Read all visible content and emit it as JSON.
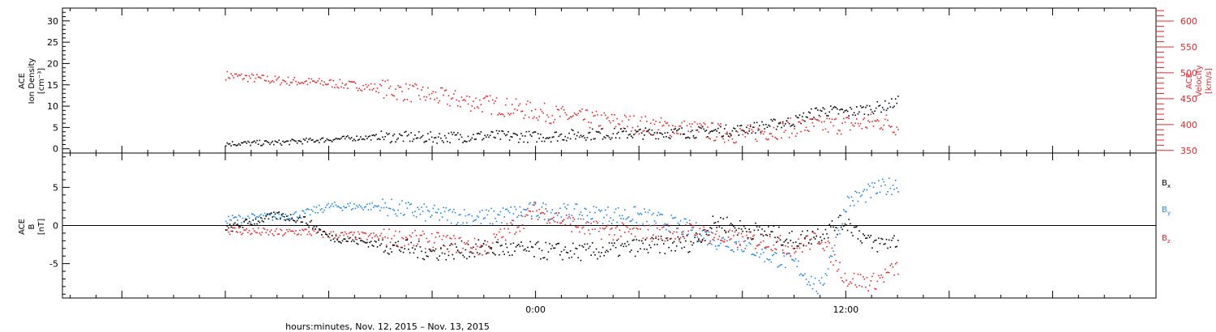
{
  "chart_data": [
    {
      "type": "scatter",
      "panel": "top",
      "ylabel_left": [
        "ACE",
        "Ion Density",
        "[cm⁻³]"
      ],
      "ylabel_right": [
        "ACE",
        "Velocity",
        "[km/s]"
      ],
      "ylim_left": [
        -1,
        33
      ],
      "yticks_left": [
        0,
        5,
        10,
        15,
        20,
        25,
        30
      ],
      "ylim_right": [
        345,
        625
      ],
      "yticks_right": [
        350,
        400,
        450,
        500,
        550,
        600
      ],
      "colors": {
        "density": "#000000",
        "velocity": "#e8262b"
      },
      "series": [
        {
          "axis": "left",
          "x": [
            -12,
            -10,
            -8,
            -6,
            -4,
            -2,
            0,
            2,
            4,
            6,
            8,
            10,
            11,
            12,
            13.5,
            14
          ],
          "y": [
            1.2,
            1.4,
            2.2,
            2.8,
            2.6,
            3.0,
            2.8,
            3.4,
            3.6,
            3.8,
            4.5,
            6.5,
            9.0,
            8.5,
            10.0,
            11.0
          ]
        },
        {
          "axis": "right",
          "x": [
            -12,
            -10,
            -8,
            -6,
            -4,
            -2,
            0,
            2,
            4,
            6,
            8,
            10,
            12,
            13.5,
            14
          ],
          "y": [
            495,
            485,
            480,
            470,
            455,
            440,
            425,
            410,
            400,
            390,
            380,
            395,
            400,
            405,
            395
          ]
        }
      ]
    },
    {
      "type": "scatter",
      "panel": "bottom",
      "ylabel_left": [
        "ACE",
        "B",
        "[nT]"
      ],
      "ylim": [
        -9.5,
        9.5
      ],
      "yticks": [
        -5,
        0,
        5
      ],
      "legend": [
        "B",
        "B",
        "B"
      ],
      "legend_subscripts": [
        "x",
        "y",
        "z"
      ],
      "colors": {
        "bx": "#000000",
        "by": "#1f88e5",
        "bz": "#e8262b"
      },
      "series": [
        {
          "x": [
            -12,
            -11,
            -10,
            -9,
            -8,
            -6,
            -4,
            -2,
            0,
            2,
            4,
            6,
            7,
            8,
            9,
            10,
            11,
            12,
            13,
            14
          ],
          "y": [
            -0.5,
            0.5,
            1.3,
            0.8,
            -1.5,
            -2.5,
            -3.5,
            -3.0,
            -3.3,
            -3.5,
            -2.8,
            -2.3,
            0.5,
            -0.5,
            -1.0,
            -2.0,
            -1.0,
            0.5,
            -2.5,
            -2.0
          ]
        },
        {
          "x": [
            -12,
            -11,
            -10,
            -9,
            -8,
            -6,
            -4,
            -2,
            0,
            2,
            4,
            6,
            7,
            8,
            9,
            10,
            11,
            12,
            13,
            14
          ],
          "y": [
            0.8,
            1.0,
            1.2,
            1.5,
            2.5,
            2.5,
            1.5,
            1.0,
            2.0,
            1.5,
            1.3,
            -0.5,
            -2.0,
            -2.5,
            -4.0,
            -5.0,
            -8.5,
            3.0,
            4.5,
            5.5
          ]
        },
        {
          "x": [
            -12,
            -11,
            -10,
            -9,
            -8,
            -6,
            -4,
            -2,
            0,
            2,
            4,
            6,
            7,
            8,
            9,
            10,
            11,
            12,
            13,
            14
          ],
          "y": [
            -0.6,
            -0.8,
            -1.0,
            -0.8,
            -1.2,
            -1.5,
            -2.0,
            -3.0,
            2.0,
            -0.5,
            -1.0,
            -0.8,
            -1.5,
            -2.0,
            -2.0,
            -3.0,
            -1.5,
            -7.0,
            -7.5,
            -5.5
          ]
        }
      ]
    }
  ],
  "x_axis": {
    "xlim": [
      -18.3,
      24
    ],
    "labeled_ticks": [
      {
        "x": 0,
        "label": "0:00"
      },
      {
        "x": 12,
        "label": "12:00"
      }
    ],
    "major_ticks": [
      -16,
      -12,
      -8,
      -4,
      0,
      4,
      8,
      12,
      16,
      20
    ],
    "title": "hours:minutes, Nov. 12, 2015 – Nov. 13, 2015"
  }
}
